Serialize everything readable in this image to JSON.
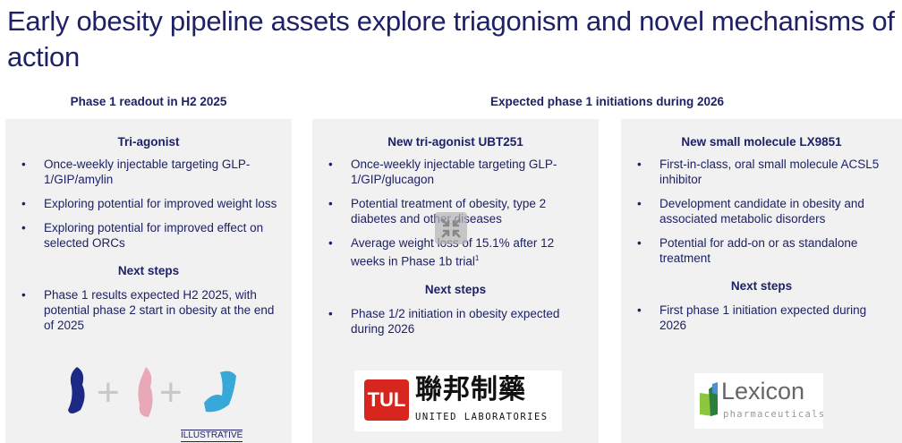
{
  "title": "Early obesity pipeline assets explore triagonism and novel mechanisms of action",
  "sections": {
    "left": "Phase 1 readout in H2 2025",
    "right": "Expected phase 1 initiations during 2026"
  },
  "panels": [
    {
      "heading": "Tri-agonist",
      "bullets": [
        "Once-weekly injectable targeting GLP-1/GIP/amylin",
        "Exploring potential for improved weight loss",
        "Exploring potential for improved effect on selected ORCs"
      ],
      "next_heading": "Next steps",
      "next": [
        "Phase 1 results expected H2 2025, with potential phase 2 start in obesity at the end of 2025"
      ],
      "illustrative": "ILLUSTRATIVE"
    },
    {
      "heading": "New tri-agonist UBT251",
      "bullets": [
        "Once-weekly injectable targeting GLP-1/GIP/glucagon",
        "Potential treatment of obesity, type 2 diabetes and other diseases",
        "Average weight loss of 15.1% after 12 weeks in Phase 1b trial"
      ],
      "footnote": "1",
      "next_heading": "Next steps",
      "next": [
        "Phase 1/2 initiation in obesity expected during 2026"
      ],
      "logo": {
        "cn": "聯邦制藥",
        "en": "UNITED LABORATORIES",
        "mark": "TUL"
      }
    },
    {
      "heading": "New small molecule LX9851",
      "bullets": [
        "First-in-class, oral small molecule ACSL5 inhibitor",
        "Development candidate in obesity and associated metabolic disorders",
        "Potential for add-on or as standalone treatment"
      ],
      "next_heading": "Next steps",
      "next": [
        "First phase 1 initiation expected during 2026"
      ],
      "logo": {
        "name": "Lexicon",
        "sub": "pharmaceuticals"
      }
    }
  ],
  "colors": {
    "text": "#1e2166",
    "panel": "#f1f1f1",
    "logo_red": "#d7261e"
  }
}
